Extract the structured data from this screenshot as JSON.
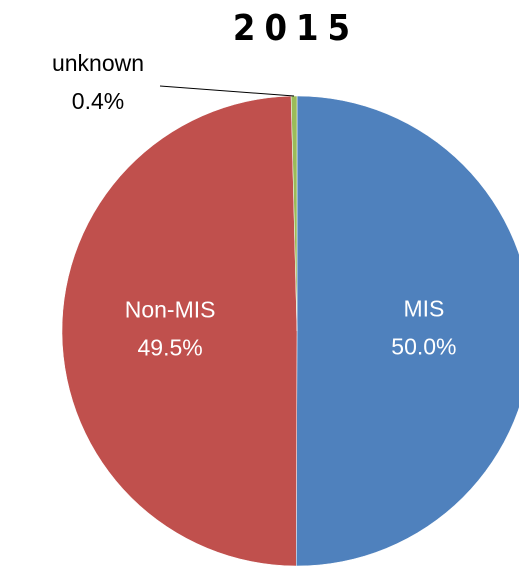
{
  "chart_data": {
    "type": "pie",
    "title": "2015",
    "categories": [
      "MIS",
      "Non-MIS",
      "unknown"
    ],
    "values": [
      50.0,
      49.5,
      0.4
    ],
    "value_labels": [
      "50.0%",
      "49.5%",
      "0.4%"
    ],
    "colors": [
      "#4f81bd",
      "#c0504d",
      "#9bbb59"
    ]
  }
}
